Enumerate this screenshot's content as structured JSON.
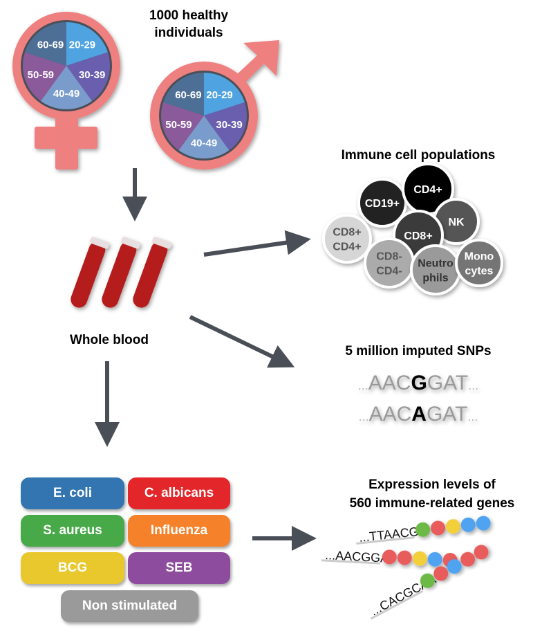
{
  "title": "1000 healthy individuals",
  "title_lines": [
    "1000 healthy",
    "individuals"
  ],
  "age_groups": [
    {
      "label": "20-29",
      "color": "#4fa3e0"
    },
    {
      "label": "30-39",
      "color": "#6a5fae"
    },
    {
      "label": "40-49",
      "color": "#7a9ccc"
    },
    {
      "label": "50-59",
      "color": "#8a5a9a"
    },
    {
      "label": "60-69",
      "color": "#4e6f95"
    }
  ],
  "sex_symbol_color": "#ee8080",
  "arrow_color": "#4a4f57",
  "whole_blood": "Whole blood",
  "immune_cells": {
    "title": "Immune cell populations",
    "cells": [
      {
        "lines": [
          "CD19+"
        ],
        "color": "#222222",
        "text": "#ffffff"
      },
      {
        "lines": [
          "CD4+"
        ],
        "color": "#000000",
        "text": "#ffffff"
      },
      {
        "lines": [
          "NK"
        ],
        "color": "#555555",
        "text": "#ffffff"
      },
      {
        "lines": [
          "CD8+",
          "CD4+"
        ],
        "color": "#d6d6d6",
        "text": "#555555"
      },
      {
        "lines": [
          "CD8+"
        ],
        "color": "#3a3a3a",
        "text": "#ffffff"
      },
      {
        "lines": [
          "CD8-",
          "CD4-"
        ],
        "color": "#ababab",
        "text": "#555555"
      },
      {
        "lines": [
          "Neutro",
          "phils"
        ],
        "color": "#9a9a9a",
        "text": "#333333"
      },
      {
        "lines": [
          "Mono",
          "cytes"
        ],
        "color": "#757575",
        "text": "#ffffff"
      }
    ]
  },
  "snps": {
    "title": "5 million imputed SNPs",
    "seq1": {
      "pre": "AAC",
      "var": "G",
      "post": "GAT"
    },
    "seq2": {
      "pre": "AAC",
      "var": "A",
      "post": "GAT"
    },
    "ellipsis": "..."
  },
  "stimuli": [
    {
      "label": "E. coli",
      "color": "#3375b0"
    },
    {
      "label": "C. albicans",
      "color": "#e3262a"
    },
    {
      "label": "S. aureus",
      "color": "#47a947"
    },
    {
      "label": "Influenza",
      "color": "#f5822a"
    },
    {
      "label": "BCG",
      "color": "#e9c82e"
    },
    {
      "label": "SEB",
      "color": "#8e4c9e"
    },
    {
      "label": "Non stimulated",
      "color": "#9a9a9a"
    }
  ],
  "expression": {
    "title_lines": [
      "Expression levels of",
      "560 immune-related genes"
    ],
    "sequences": [
      {
        "text": "...TTAACGG",
        "beads": [
          "#6cb947",
          "#e85c5c",
          "#f2cf3b",
          "#4fa3f0",
          "#4fa3f0"
        ]
      },
      {
        "text": "...AACGGAT",
        "beads": [
          "#e85c5c",
          "#e85c5c",
          "#f2cf3b",
          "#4fa3f0",
          "#e85c5c"
        ]
      },
      {
        "text": "...CACGCAA",
        "beads": [
          "#6cb947",
          "#e85c5c",
          "#4fa3f0",
          "#e85c5c",
          "#e85c5c"
        ]
      }
    ]
  }
}
